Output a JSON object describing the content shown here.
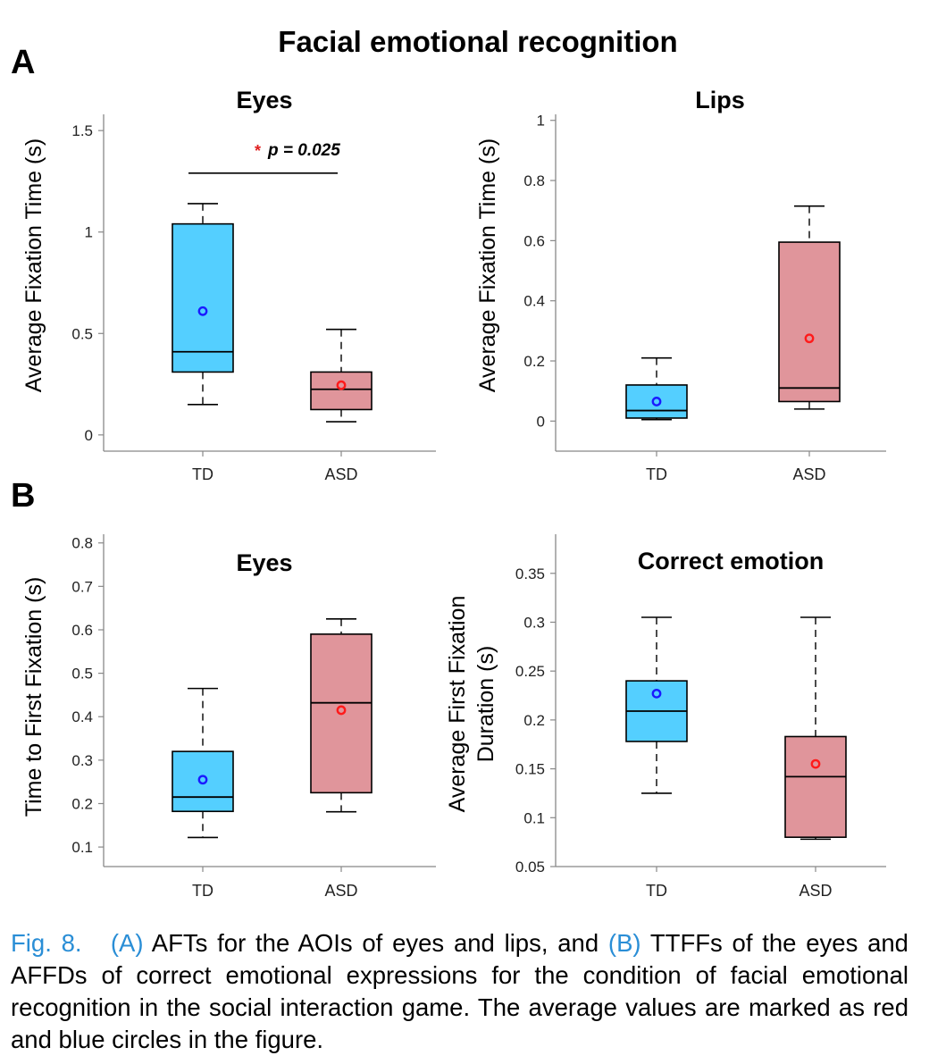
{
  "figure": {
    "title": "Facial emotional recognition",
    "panel_labels": [
      "A",
      "B"
    ],
    "colors": {
      "td_box": "#54cfff",
      "asd_box": "#e0959b",
      "td_mean": "#1a1aff",
      "asd_mean": "#ff1a1a",
      "sig_star": "#e02020",
      "caption_blue": "#2a8ed6"
    }
  },
  "chart_data": [
    {
      "type": "box",
      "panel": "A",
      "title": "Eyes",
      "ylabel": "Average Fixation Time (s)",
      "categories": [
        "TD",
        "ASD"
      ],
      "ylim": [
        -0.08,
        1.58
      ],
      "yticks": [
        0,
        0.5,
        1,
        1.5
      ],
      "ytick_labels": [
        "0",
        "0.5",
        "1",
        "1.5"
      ],
      "boxes": [
        {
          "name": "TD",
          "whisker_low": 0.15,
          "q1": 0.31,
          "median": 0.41,
          "q3": 1.04,
          "whisker_high": 1.14,
          "mean": 0.61
        },
        {
          "name": "ASD",
          "whisker_low": 0.065,
          "q1": 0.125,
          "median": 0.225,
          "q3": 0.31,
          "whisker_high": 0.52,
          "mean": 0.245
        }
      ],
      "significance": {
        "star": "*",
        "text": "p = 0.025",
        "y": 1.29
      }
    },
    {
      "type": "box",
      "panel": "A",
      "title": "Lips",
      "ylabel": "Average Fixation Time (s)",
      "categories": [
        "TD",
        "ASD"
      ],
      "ylim": [
        -0.1,
        1.02
      ],
      "yticks": [
        0,
        0.2,
        0.4,
        0.6,
        0.8,
        1
      ],
      "ytick_labels": [
        "0",
        "0.2",
        "0.4",
        "0.6",
        "0.8",
        "1"
      ],
      "boxes": [
        {
          "name": "TD",
          "whisker_low": 0.005,
          "q1": 0.01,
          "median": 0.035,
          "q3": 0.12,
          "whisker_high": 0.21,
          "mean": 0.065
        },
        {
          "name": "ASD",
          "whisker_low": 0.04,
          "q1": 0.065,
          "median": 0.11,
          "q3": 0.595,
          "whisker_high": 0.715,
          "mean": 0.275
        }
      ]
    },
    {
      "type": "box",
      "panel": "B",
      "title": "Eyes",
      "ylabel": "Time to First Fixation (s)",
      "categories": [
        "TD",
        "ASD"
      ],
      "ylim": [
        0.055,
        0.82
      ],
      "yticks": [
        0.1,
        0.2,
        0.3,
        0.4,
        0.5,
        0.6,
        0.7,
        0.8
      ],
      "ytick_labels": [
        "0.1",
        "0.2",
        "0.3",
        "0.4",
        "0.5",
        "0.6",
        "0.7",
        "0.8"
      ],
      "boxes": [
        {
          "name": "TD",
          "whisker_low": 0.122,
          "q1": 0.182,
          "median": 0.215,
          "q3": 0.32,
          "whisker_high": 0.465,
          "mean": 0.255
        },
        {
          "name": "ASD",
          "whisker_low": 0.181,
          "q1": 0.225,
          "median": 0.432,
          "q3": 0.59,
          "whisker_high": 0.625,
          "mean": 0.415
        }
      ]
    },
    {
      "type": "box",
      "panel": "B",
      "title": "Correct emotion",
      "ylabel_lines": [
        "Average First Fixation",
        "Duration (s)"
      ],
      "categories": [
        "TD",
        "ASD"
      ],
      "ylim": [
        0.05,
        0.39
      ],
      "yticks": [
        0.05,
        0.1,
        0.15,
        0.2,
        0.25,
        0.3,
        0.35
      ],
      "ytick_labels": [
        "0.05",
        "0.1",
        "0.15",
        "0.2",
        "0.25",
        "0.3",
        "0.35"
      ],
      "boxes": [
        {
          "name": "TD",
          "whisker_low": 0.125,
          "q1": 0.178,
          "median": 0.209,
          "q3": 0.24,
          "whisker_high": 0.305,
          "mean": 0.227
        },
        {
          "name": "ASD",
          "whisker_low": 0.078,
          "q1": 0.08,
          "median": 0.142,
          "q3": 0.183,
          "whisker_high": 0.305,
          "mean": 0.155
        }
      ]
    }
  ],
  "caption": {
    "fig_label": "Fig. 8.",
    "part_a": "(A)",
    "text_a": " AFTs for the AOIs of eyes and lips, and ",
    "part_b": "(B)",
    "text_b": " TTFFs of the eyes and AFFDs of correct emotional expressions for the condition of facial emotional recognition in the social interaction game. The average values are marked as red and blue circles in the figure."
  }
}
